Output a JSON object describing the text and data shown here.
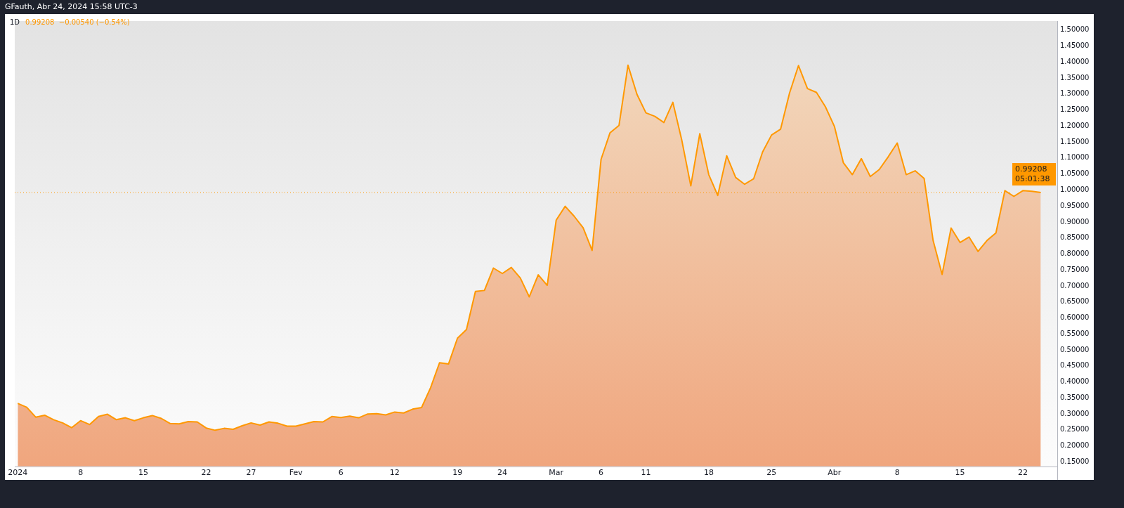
{
  "chart_data": {
    "type": "area",
    "title": "1D",
    "subtitle": "GFauth, Abr 24, 2024 15:58 UTC-3",
    "annotations": [
      "0.99208  −0.00540 (−0.54%)",
      "05:01:38"
    ],
    "x": [
      "2024-01-01",
      "2024-01-02",
      "2024-01-03",
      "2024-01-04",
      "2024-01-05",
      "2024-01-06",
      "2024-01-07",
      "2024-01-08",
      "2024-01-09",
      "2024-01-10",
      "2024-01-11",
      "2024-01-12",
      "2024-01-13",
      "2024-01-14",
      "2024-01-15",
      "2024-01-16",
      "2024-01-17",
      "2024-01-18",
      "2024-01-19",
      "2024-01-20",
      "2024-01-21",
      "2024-01-22",
      "2024-01-23",
      "2024-01-24",
      "2024-01-25",
      "2024-01-26",
      "2024-01-27",
      "2024-01-28",
      "2024-01-29",
      "2024-01-30",
      "2024-01-31",
      "2024-02-01",
      "2024-02-02",
      "2024-02-03",
      "2024-02-04",
      "2024-02-05",
      "2024-02-06",
      "2024-02-07",
      "2024-02-08",
      "2024-02-09",
      "2024-02-10",
      "2024-02-11",
      "2024-02-12",
      "2024-02-13",
      "2024-02-14",
      "2024-02-15",
      "2024-02-16",
      "2024-02-17",
      "2024-02-18",
      "2024-02-19",
      "2024-02-20",
      "2024-02-21",
      "2024-02-22",
      "2024-02-23",
      "2024-02-24",
      "2024-02-25",
      "2024-02-26",
      "2024-02-27",
      "2024-02-28",
      "2024-02-29",
      "2024-03-01",
      "2024-03-02",
      "2024-03-03",
      "2024-03-04",
      "2024-03-05",
      "2024-03-06",
      "2024-03-07",
      "2024-03-08",
      "2024-03-09",
      "2024-03-10",
      "2024-03-11",
      "2024-03-12",
      "2024-03-13",
      "2024-03-14",
      "2024-03-15",
      "2024-03-16",
      "2024-03-17",
      "2024-03-18",
      "2024-03-19",
      "2024-03-20",
      "2024-03-21",
      "2024-03-22",
      "2024-03-23",
      "2024-03-24",
      "2024-03-25",
      "2024-03-26",
      "2024-03-27",
      "2024-03-28",
      "2024-03-29",
      "2024-03-30",
      "2024-03-31",
      "2024-04-01",
      "2024-04-02",
      "2024-04-03",
      "2024-04-04",
      "2024-04-05",
      "2024-04-06",
      "2024-04-07",
      "2024-04-08",
      "2024-04-09",
      "2024-04-10",
      "2024-04-11",
      "2024-04-12",
      "2024-04-13",
      "2024-04-14",
      "2024-04-15",
      "2024-04-16",
      "2024-04-17",
      "2024-04-18",
      "2024-04-19",
      "2024-04-20",
      "2024-04-21",
      "2024-04-22",
      "2024-04-23",
      "2024-04-24"
    ],
    "series": [
      {
        "color": "#ff9800",
        "values": [
          0.333,
          0.321,
          0.29,
          0.296,
          0.282,
          0.272,
          0.257,
          0.279,
          0.267,
          0.292,
          0.299,
          0.282,
          0.288,
          0.279,
          0.288,
          0.295,
          0.286,
          0.27,
          0.269,
          0.276,
          0.275,
          0.256,
          0.249,
          0.255,
          0.252,
          0.263,
          0.272,
          0.265,
          0.275,
          0.271,
          0.262,
          0.262,
          0.269,
          0.276,
          0.275,
          0.292,
          0.289,
          0.293,
          0.288,
          0.3,
          0.301,
          0.297,
          0.306,
          0.303,
          0.315,
          0.32,
          0.382,
          0.46,
          0.456,
          0.537,
          0.564,
          0.683,
          0.686,
          0.756,
          0.739,
          0.758,
          0.725,
          0.666,
          0.735,
          0.702,
          0.906,
          0.949,
          0.918,
          0.882,
          0.811,
          1.096,
          1.179,
          1.202,
          1.39,
          1.299,
          1.241,
          1.23,
          1.211,
          1.274,
          1.155,
          1.013,
          1.176,
          1.048,
          0.983,
          1.107,
          1.039,
          1.018,
          1.035,
          1.119,
          1.172,
          1.19,
          1.303,
          1.389,
          1.317,
          1.305,
          1.26,
          1.199,
          1.085,
          1.048,
          1.098,
          1.042,
          1.064,
          1.104,
          1.147,
          1.048,
          1.06,
          1.036,
          0.842,
          0.736,
          0.881,
          0.836,
          0.853,
          0.808,
          0.842,
          0.866,
          0.998,
          0.98,
          0.998,
          0.996,
          0.992
        ]
      }
    ],
    "xlim": [
      "2023-12-31T16:00",
      "2024-04-25T20:00"
    ],
    "xticks": [
      {
        "value": "2024-01-01",
        "label": "2024"
      },
      {
        "value": "2024-01-08",
        "label": "8"
      },
      {
        "value": "2024-01-15",
        "label": "15"
      },
      {
        "value": "2024-01-22",
        "label": "22"
      },
      {
        "value": "2024-01-27",
        "label": "27"
      },
      {
        "value": "2024-02-01",
        "label": "Fev"
      },
      {
        "value": "2024-02-06",
        "label": "6"
      },
      {
        "value": "2024-02-12",
        "label": "12"
      },
      {
        "value": "2024-02-19",
        "label": "19"
      },
      {
        "value": "2024-02-24",
        "label": "24"
      },
      {
        "value": "2024-03-01",
        "label": "Mar"
      },
      {
        "value": "2024-03-06",
        "label": "6"
      },
      {
        "value": "2024-03-11",
        "label": "11"
      },
      {
        "value": "2024-03-18",
        "label": "18"
      },
      {
        "value": "2024-03-25",
        "label": "25"
      },
      {
        "value": "2024-04-01",
        "label": "Abr"
      },
      {
        "value": "2024-04-08",
        "label": "8"
      },
      {
        "value": "2024-04-15",
        "label": "15"
      },
      {
        "value": "2024-04-22",
        "label": "22"
      }
    ],
    "ylim": [
      0.136,
      1.528
    ],
    "yticks": [
      {
        "value": 0.15,
        "label": "0.15000"
      },
      {
        "value": 0.2,
        "label": "0.20000"
      },
      {
        "value": 0.25,
        "label": "0.25000"
      },
      {
        "value": 0.3,
        "label": "0.30000"
      },
      {
        "value": 0.35,
        "label": "0.35000"
      },
      {
        "value": 0.4,
        "label": "0.40000"
      },
      {
        "value": 0.45,
        "label": "0.45000"
      },
      {
        "value": 0.5,
        "label": "0.50000"
      },
      {
        "value": 0.55,
        "label": "0.55000"
      },
      {
        "value": 0.6,
        "label": "0.60000"
      },
      {
        "value": 0.65,
        "label": "0.65000"
      },
      {
        "value": 0.7,
        "label": "0.70000"
      },
      {
        "value": 0.75,
        "label": "0.75000"
      },
      {
        "value": 0.8,
        "label": "0.80000"
      },
      {
        "value": 0.85,
        "label": "0.85000"
      },
      {
        "value": 0.9,
        "label": "0.90000"
      },
      {
        "value": 0.95,
        "label": "0.95000"
      },
      {
        "value": 1.0,
        "label": "1.00000"
      },
      {
        "value": 1.05,
        "label": "1.05000"
      },
      {
        "value": 1.1,
        "label": "1.10000"
      },
      {
        "value": 1.15,
        "label": "1.15000"
      },
      {
        "value": 1.2,
        "label": "1.20000"
      },
      {
        "value": 1.25,
        "label": "1.25000"
      },
      {
        "value": 1.3,
        "label": "1.30000"
      },
      {
        "value": 1.35,
        "label": "1.35000"
      },
      {
        "value": 1.4,
        "label": "1.40000"
      },
      {
        "value": 1.45,
        "label": "1.45000"
      },
      {
        "value": 1.5,
        "label": "1.50000"
      }
    ],
    "ref_lines": [
      {
        "axis": "y",
        "value": 0.99208,
        "label": "0.99208",
        "color": "#ff9800",
        "line_style": "dotted"
      }
    ],
    "marker": "none",
    "line_style": "solid"
  }
}
